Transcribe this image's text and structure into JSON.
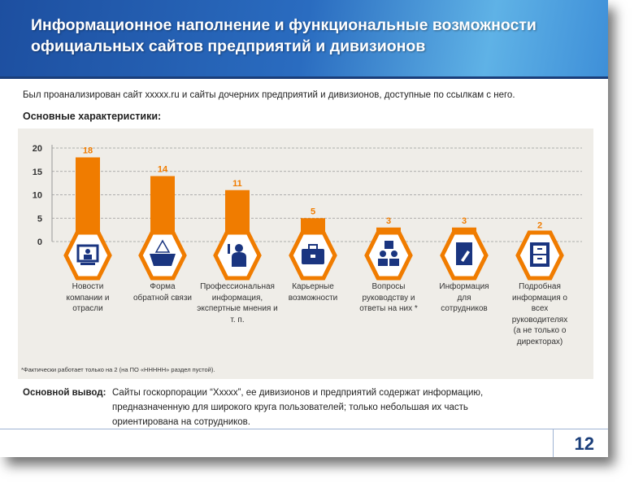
{
  "header": {
    "title_line1": "Информационное наполнение и функциональные возможности",
    "title_line2": "официальных сайтов предприятий и дивизионов"
  },
  "intro": "Был проанализирован  сайт xxxxx.ru и сайты дочерних предприятий  и дивизионов,  доступные по ссылкам с него.",
  "subhead": "Основные характеристики:",
  "chart_data": {
    "type": "bar",
    "categories": [
      "Новости компании и отрасли",
      "Форма обратной связи",
      "Профессиональная информация, экспертные мнения и т. п.",
      "Карьерные возможности",
      "Вопросы руководству и ответы на них *",
      "Информация для сотрудников",
      "Подробная информация о всех руководителях (а не только о директорах)"
    ],
    "values": [
      18,
      14,
      11,
      5,
      3,
      3,
      2
    ],
    "icons": [
      "monitor-presenter-icon",
      "ballot-box-icon",
      "speaker-icon",
      "briefcase-icon",
      "question-people-icon",
      "notepad-pencil-icon",
      "file-cabinet-icon"
    ],
    "yticks": [
      0,
      5,
      10,
      15,
      20
    ],
    "ylim": [
      0,
      20
    ],
    "grid": true,
    "bar_color": "#f07c00",
    "icon_color": "#1a3580"
  },
  "footnote": "*Фактически  работает  только на 2 (на ПО «ННННН»  раздел пустой).",
  "conclusion": {
    "label": "Основной вывод:",
    "text": "Сайты госкорпорации “Ххххх”, ее дивизионов  и предприятий  содержат  информацию, предназначенную  для широкого круга пользователей; только небольшая их часть ориентирована  на сотрудников."
  },
  "page_number": "12"
}
